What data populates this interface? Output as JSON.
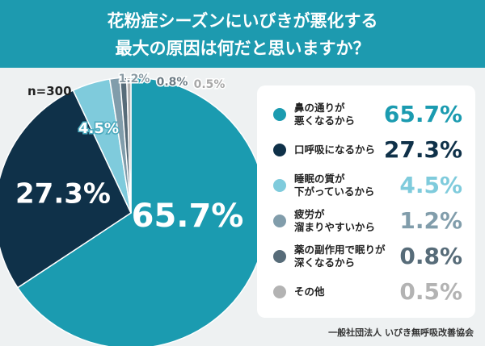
{
  "chart_data": {
    "type": "pie",
    "title": [
      "花粉症シーズンにいびきが悪化する",
      "最大の原因は何だと思いますか？"
    ],
    "note": "n=300",
    "categories": [
      "鼻の通りが\n悪くなるから",
      "口呼吸になるから",
      "睡眠の質が\n下がっているから",
      "疲労が\n溜まりやすいから",
      "薬の副作用で眠りが\n深くなるから",
      "その他"
    ],
    "values": [
      65.7,
      27.3,
      4.5,
      1.2,
      0.8,
      0.5
    ],
    "value_labels": [
      "65.7%",
      "27.3%",
      "4.5%",
      "1.2%",
      "0.8%",
      "0.5%"
    ],
    "colors": [
      "#1b9bb0",
      "#0f3149",
      "#7fcbdc",
      "#819dab",
      "#576c79",
      "#b3b3b3"
    ],
    "source": "一般社団法人 いびき無呼吸改善協会"
  }
}
